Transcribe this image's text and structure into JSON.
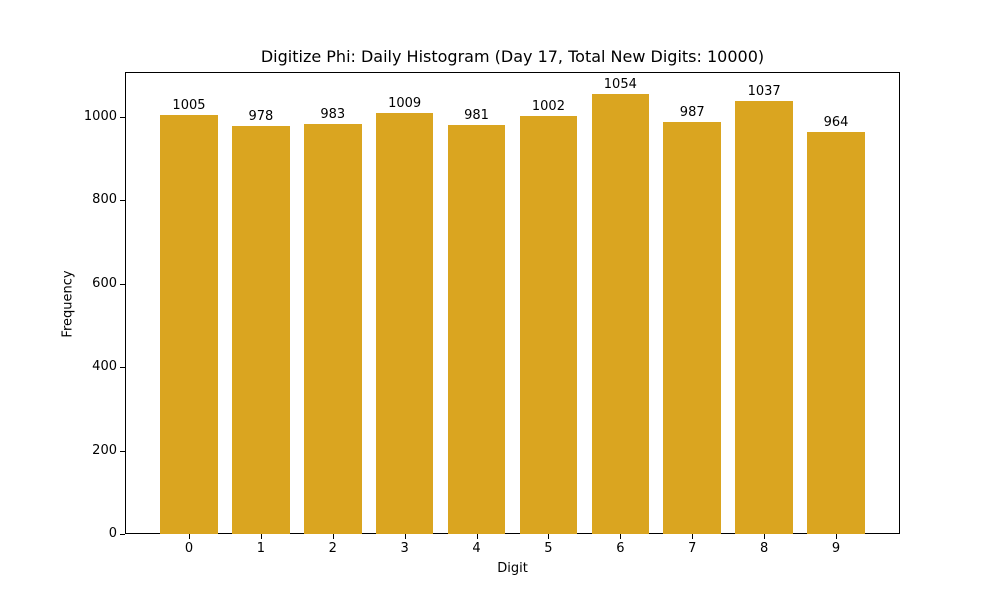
{
  "chart_data": {
    "type": "bar",
    "title": "Digitize Phi: Daily Histogram (Day 17, Total New Digits: 10000)",
    "xlabel": "Digit",
    "ylabel": "Frequency",
    "categories": [
      "0",
      "1",
      "2",
      "3",
      "4",
      "5",
      "6",
      "7",
      "8",
      "9"
    ],
    "values": [
      1005,
      978,
      983,
      1009,
      981,
      1002,
      1054,
      987,
      1037,
      964
    ],
    "bar_labels": [
      "1005",
      "978",
      "983",
      "1009",
      "981",
      "1002",
      "1054",
      "987",
      "1037",
      "964"
    ],
    "yticks": [
      0,
      200,
      400,
      600,
      800,
      1000
    ],
    "ylim": [
      0,
      1107
    ],
    "xlim": [
      -0.89,
      9.89
    ],
    "bar_color": "#DAA520",
    "grid": false,
    "legend": null
  }
}
